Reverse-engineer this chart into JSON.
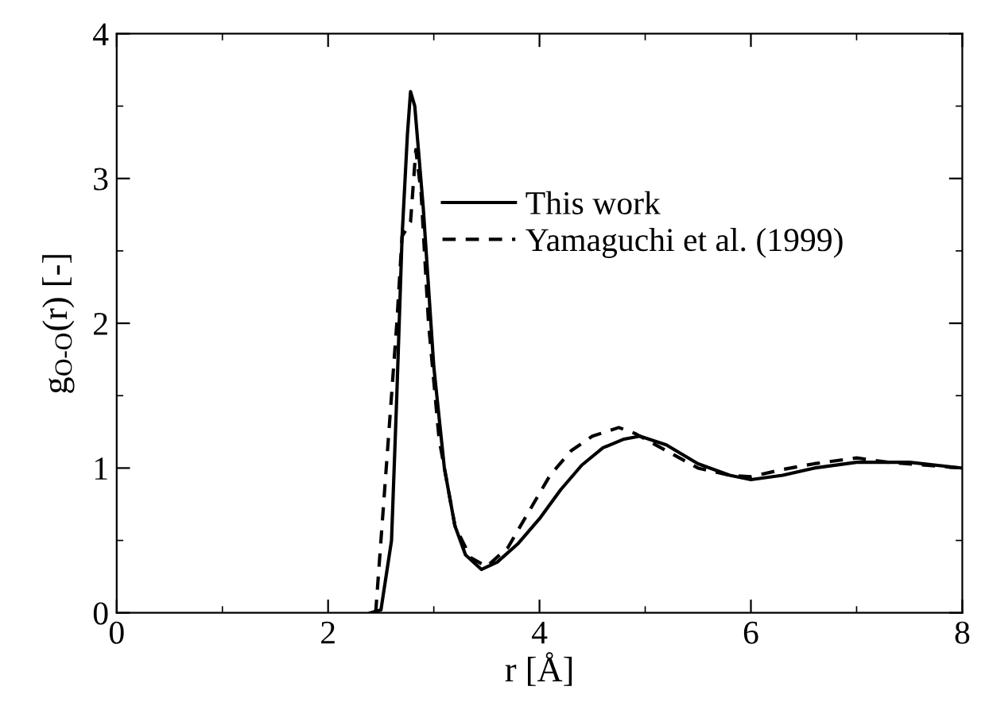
{
  "chart_data": {
    "type": "line",
    "xlabel": "r [Å]",
    "ylabel": "g$_{O-O}$(r) [-]",
    "xlim": [
      0,
      8
    ],
    "ylim": [
      0,
      4
    ],
    "xticks": [
      0,
      2,
      4,
      6,
      8
    ],
    "yticks": [
      0,
      1,
      2,
      3,
      4
    ],
    "grid": false,
    "legend": "top",
    "marker": "none",
    "series": [
      {
        "name": "This work",
        "color": "#000000",
        "line_style": "solid",
        "x": [
          2.4,
          2.5,
          2.6,
          2.65,
          2.7,
          2.75,
          2.78,
          2.82,
          2.9,
          3.0,
          3.1,
          3.2,
          3.3,
          3.45,
          3.6,
          3.8,
          4.0,
          4.2,
          4.4,
          4.6,
          4.8,
          4.95,
          5.2,
          5.5,
          5.8,
          6.0,
          6.3,
          6.6,
          7.0,
          7.5,
          8.0
        ],
        "values": [
          0,
          0.02,
          0.5,
          1.5,
          2.6,
          3.3,
          3.6,
          3.5,
          2.8,
          1.7,
          1.0,
          0.6,
          0.4,
          0.3,
          0.35,
          0.48,
          0.65,
          0.85,
          1.02,
          1.14,
          1.2,
          1.22,
          1.16,
          1.03,
          0.95,
          0.92,
          0.95,
          1.0,
          1.04,
          1.04,
          1.0
        ]
      },
      {
        "name": "Yamaguchi et al. (1999)",
        "color": "#000000",
        "line_style": "dashed",
        "x": [
          2.45,
          2.5,
          2.55,
          2.6,
          2.65,
          2.7,
          2.78,
          2.83,
          2.88,
          2.95,
          3.05,
          3.2,
          3.35,
          3.5,
          3.7,
          3.9,
          4.1,
          4.3,
          4.5,
          4.75,
          4.9,
          5.2,
          5.5,
          5.8,
          6.0,
          6.3,
          6.6,
          7.0,
          7.3,
          8.0
        ],
        "values": [
          0,
          0.5,
          1.0,
          1.5,
          2.0,
          2.6,
          2.7,
          3.2,
          2.9,
          2.0,
          1.2,
          0.6,
          0.38,
          0.32,
          0.45,
          0.7,
          0.95,
          1.12,
          1.22,
          1.28,
          1.24,
          1.12,
          1.0,
          0.95,
          0.94,
          0.99,
          1.03,
          1.07,
          1.04,
          1.0
        ]
      }
    ]
  }
}
